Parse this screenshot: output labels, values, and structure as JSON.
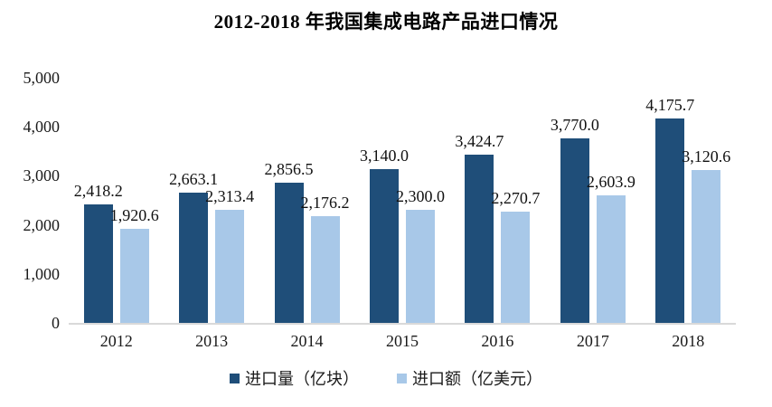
{
  "title": "2012-2018 年我国集成电路产品进口情况",
  "chart_data": {
    "type": "bar",
    "title": "2012-2018 年我国集成电路产品进口情况",
    "categories": [
      "2012",
      "2013",
      "2014",
      "2015",
      "2016",
      "2017",
      "2018"
    ],
    "series": [
      {
        "name": "进口量（亿块）",
        "color": "#1F4E79",
        "values": [
          2418.2,
          2663.1,
          2856.5,
          3140.0,
          3424.7,
          3770.0,
          4175.7
        ],
        "labels": [
          "2,418.2",
          "2,663.1",
          "2,856.5",
          "3,140.0",
          "3,424.7",
          "3,770.0",
          "4,175.7"
        ]
      },
      {
        "name": "进口额（亿美元）",
        "color": "#A8C8E8",
        "values": [
          1920.6,
          2313.4,
          2176.2,
          2300.0,
          2270.7,
          2603.9,
          3120.6
        ],
        "labels": [
          "1,920.6",
          "2,313.4",
          "2,176.2",
          "2,300.0",
          "2,270.7",
          "2,603.9",
          "3,120.6"
        ]
      }
    ],
    "ylim": [
      0,
      5000
    ],
    "yticks": [
      {
        "value": 0,
        "label": "0"
      },
      {
        "value": 1000,
        "label": "1,000"
      },
      {
        "value": 2000,
        "label": "2,000"
      },
      {
        "value": 3000,
        "label": "3,000"
      },
      {
        "value": 4000,
        "label": "4,000"
      },
      {
        "value": 5000,
        "label": "5,000"
      }
    ],
    "grid": false,
    "legend_position": "bottom",
    "axis_line_color": "#D9D9D9",
    "text_color": "#1a1a1a"
  }
}
